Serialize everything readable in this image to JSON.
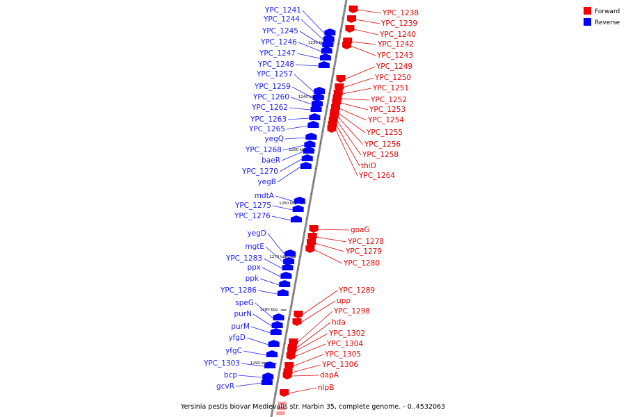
{
  "caption": "Yersinia pestis biovar Medievalis str. Harbin 35, complete genome. - 0..4532063",
  "legend": [
    {
      "label": "Forward",
      "color": "#ff0000"
    },
    {
      "label": "Reverse",
      "color": "#0000ff"
    }
  ],
  "kbp_ticks": [
    "1230 kbp",
    "1240 kbp",
    "1250 kbp",
    "1260 kbp",
    "1270 kbp",
    "1280 kbp",
    "1290 kbp"
  ],
  "reverse_genes": [
    "YPC_1241",
    "YPC_1244",
    "YPC_1245",
    "YPC_1246",
    "YPC_1247",
    "YPC_1248",
    "YPC_1257",
    "YPC_1259",
    "YPC_1260",
    "YPC_1262",
    "YPC_1263",
    "YPC_1265",
    "yegQ",
    "YPC_1268",
    "baeR",
    "YPC_1270",
    "yegB",
    "mdtA",
    "YPC_1275",
    "YPC_1276",
    "yegD",
    "mgtE",
    "YPC_1283",
    "ppx",
    "ppk",
    "YPC_1286",
    "speG",
    "purN",
    "purM",
    "yfgD",
    "yfgC",
    "YPC_1303",
    "bcp",
    "gcvR"
  ],
  "forward_genes": [
    "YPC_1238",
    "YPC_1239",
    "YPC_1240",
    "YPC_1242",
    "YPC_1243",
    "YPC_1249",
    "YPC_1250",
    "YPC_1251",
    "YPC_1252",
    "YPC_1253",
    "YPC_1254",
    "YPC_1255",
    "YPC_1256",
    "YPC_1258",
    "thiD",
    "YPC_1264",
    "goaG",
    "YPC_1278",
    "YPC_1279",
    "YPC_1280",
    "YPC_1289",
    "upp",
    "YPC_1298",
    "hda",
    "YPC_1302",
    "YPC_1304",
    "YPC_1305",
    "YPC_1306",
    "dapA",
    "nlpB"
  ]
}
